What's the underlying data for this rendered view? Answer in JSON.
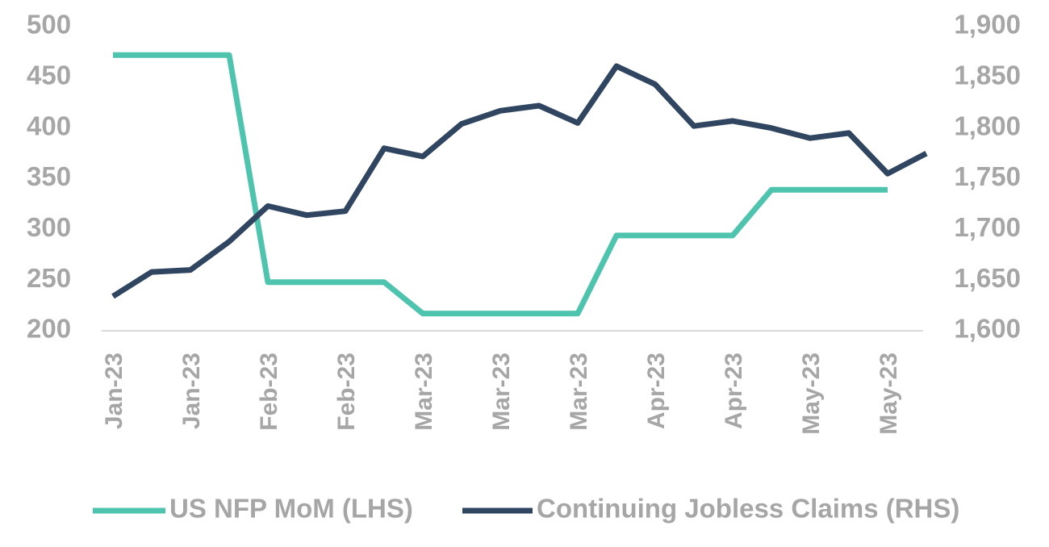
{
  "colors": {
    "nfp": "#4ec3ad",
    "claims": "#2f4560",
    "axis_text": "#a6a6a6",
    "axis_line": "#d9d9d9"
  },
  "chart_data": {
    "type": "line",
    "x": [
      "Jan-23",
      "",
      "Jan-23",
      "",
      "Feb-23",
      "",
      "Feb-23",
      "",
      "Mar-23",
      "",
      "Mar-23",
      "",
      "Mar-23",
      "",
      "Apr-23",
      "",
      "Apr-23",
      "",
      "May-23",
      "",
      "May-23",
      ""
    ],
    "x_tick_labels": [
      "Jan-23",
      "Jan-23",
      "Feb-23",
      "Feb-23",
      "Mar-23",
      "Mar-23",
      "Mar-23",
      "Apr-23",
      "Apr-23",
      "May-23",
      "May-23"
    ],
    "y_left": {
      "ylim": [
        200,
        500
      ],
      "ticks": [
        "500",
        "450",
        "400",
        "350",
        "300",
        "250",
        "200"
      ]
    },
    "y_right": {
      "ylim": [
        1600,
        1900
      ],
      "ticks": [
        "1,900",
        "1,850",
        "1,800",
        "1,750",
        "1,700",
        "1,650",
        "1,600"
      ]
    },
    "series": [
      {
        "name": "US NFP MoM (LHS)",
        "axis": "left",
        "values": [
          472,
          472,
          472,
          472,
          248,
          248,
          248,
          248,
          217,
          217,
          217,
          217,
          217,
          294,
          294,
          294,
          294,
          339,
          339,
          339,
          339,
          null
        ]
      },
      {
        "name": "Continuing Jobless Claims (RHS)",
        "axis": "right",
        "values": [
          1634,
          1658,
          1660,
          1688,
          1723,
          1714,
          1718,
          1780,
          1772,
          1804,
          1817,
          1822,
          1805,
          1861,
          1843,
          1802,
          1807,
          1800,
          1790,
          1795,
          1755,
          1775
        ]
      }
    ],
    "legend": "bottom",
    "grid": false
  }
}
